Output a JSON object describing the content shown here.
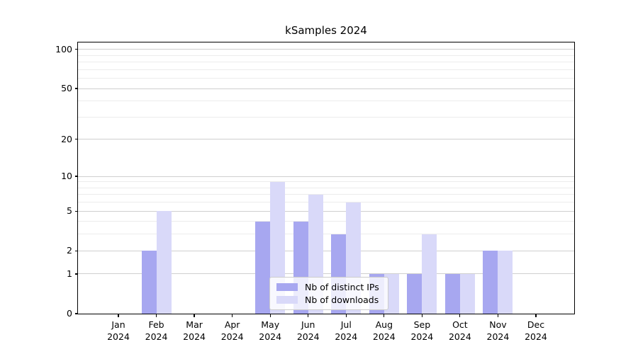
{
  "title": "kSamples 2024",
  "chart_data": {
    "type": "bar",
    "title": "kSamples 2024",
    "categories": [
      "Jan",
      "Feb",
      "Mar",
      "Apr",
      "May",
      "Jun",
      "Jul",
      "Aug",
      "Sep",
      "Oct",
      "Nov",
      "Dec"
    ],
    "category_year": "2024",
    "series": [
      {
        "name": "Nb of distinct IPs",
        "color": "#a7a7f0",
        "values": [
          0,
          2,
          0,
          0,
          4,
          4,
          3,
          1,
          1,
          1,
          2,
          0
        ]
      },
      {
        "name": "Nb of downloads",
        "color": "#d9d9f9",
        "values": [
          0,
          5,
          0,
          0,
          9,
          7,
          6,
          1,
          3,
          1,
          2,
          0
        ]
      }
    ],
    "xlabel": "",
    "ylabel": "",
    "yscale": "log1p",
    "ylim": [
      0,
      113
    ],
    "y_major_ticks": [
      0,
      1,
      2,
      5,
      10,
      20,
      50,
      100
    ],
    "y_minor_gridlines": [
      3,
      4,
      6,
      7,
      8,
      9,
      30,
      40,
      60,
      70,
      80,
      90
    ],
    "grid": "on",
    "legend_position": "lower center"
  },
  "colors": {
    "major_grid": "#cfcfcf",
    "minor_grid": "#ececec",
    "axis": "#000000",
    "legend_border": "#cccccc",
    "background": "#ffffff"
  }
}
